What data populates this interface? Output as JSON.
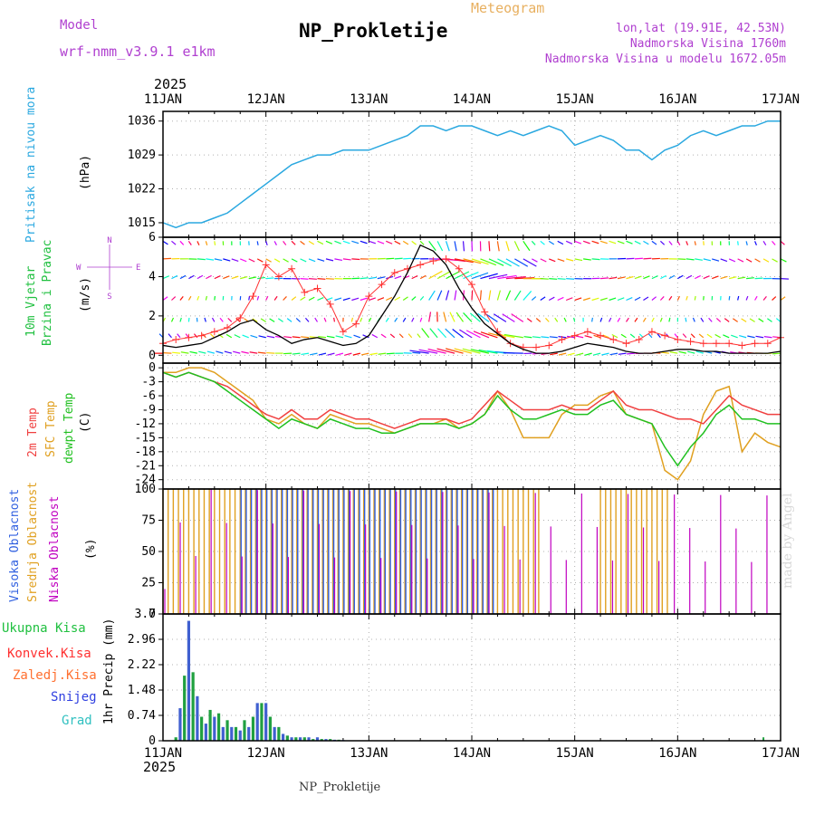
{
  "header": {
    "model_label": "Model",
    "model_name": "wrf-nmm_v3.9.1 e1km",
    "title": "NP_Prokletije",
    "subtitle": "Meteogram",
    "lonlat": "lon,lat (19.91E, 42.53N)",
    "elevation": "Nadmorska Visina 1760m",
    "model_elevation": "Nadmorska Visina u modelu 1672.05m",
    "watermark": "made by Angel",
    "footer_station": "NP_Prokletije"
  },
  "time_axis": {
    "year": "2025",
    "ticks": [
      "11JAN",
      "12JAN",
      "13JAN",
      "14JAN",
      "15JAN",
      "16JAN",
      "17JAN"
    ]
  },
  "colors": {
    "pressure": "#2aa8e0",
    "wind_speed": "#000000",
    "wind_gust": "#ff3030",
    "temp2m": "#f04040",
    "sfc_temp": "#e0a020",
    "dewpt": "#20c020",
    "cloud_high": "#3060e0",
    "cloud_mid": "#e0a020",
    "cloud_low": "#c000c0",
    "precip": "#20a040",
    "precip_bar2": "#4060d0",
    "model_text": "#b040d0",
    "subtitle_text": "#e8b060",
    "ukupna": "#20c040",
    "konvek": "#ff3030",
    "zaledj": "#ff7030",
    "snijeg": "#3040e0",
    "grad": "#30c0c0"
  },
  "panels": {
    "pressure": {
      "ylabel_color": "Pritisak na nivou mora",
      "ylabel_unit": "(hPa)"
    },
    "wind": {
      "ylabel_a": "10m Vjetar",
      "ylabel_b": "Brzina i Pravac",
      "ylabel_unit": "(m/s)",
      "compass_w": "W",
      "compass_e": "E",
      "compass_n": "N",
      "compass_s": "S"
    },
    "temp": {
      "ylabel_a": "2m Temp",
      "ylabel_b": "SFC Temp",
      "ylabel_c": "dewpt Temp",
      "ylabel_unit": "(C)"
    },
    "cloud": {
      "ylabel_a": "Visoka Oblacnost",
      "ylabel_b": "Srednja Oblacnost",
      "ylabel_c": "Niska Oblacnost",
      "ylabel_unit": "(%)"
    },
    "precip": {
      "legend": [
        "Ukupna Kisa",
        "Konvek.Kisa",
        "Zaledj.Kisa",
        "Snijeg",
        "Grad"
      ],
      "ylabel_unit": "1hr Precip (mm)"
    }
  },
  "chart_data": [
    {
      "type": "line",
      "name": "pressure",
      "ylim": [
        1012,
        1038
      ],
      "yticks": [
        1015,
        1022,
        1029,
        1036
      ],
      "x": [
        0,
        3,
        6,
        9,
        12,
        15,
        18,
        21,
        24,
        27,
        30,
        33,
        36,
        39,
        42,
        45,
        48,
        51,
        54,
        57,
        60,
        63,
        66,
        69,
        72,
        75,
        78,
        81,
        84,
        87,
        90,
        93,
        96,
        99,
        102,
        105,
        108,
        111,
        114,
        117,
        120,
        123,
        126,
        129,
        132,
        135,
        138,
        141,
        144
      ],
      "values": [
        1015,
        1014,
        1015,
        1015,
        1016,
        1017,
        1019,
        1021,
        1023,
        1025,
        1027,
        1028,
        1029,
        1029,
        1030,
        1030,
        1030,
        1031,
        1032,
        1033,
        1035,
        1035,
        1034,
        1035,
        1035,
        1034,
        1033,
        1034,
        1033,
        1034,
        1035,
        1034,
        1031,
        1032,
        1033,
        1032,
        1030,
        1030,
        1028,
        1030,
        1031,
        1033,
        1034,
        1033,
        1034,
        1035,
        1035,
        1036,
        1036
      ]
    },
    {
      "type": "line",
      "name": "wind",
      "ylim": [
        -0.4,
        6
      ],
      "yticks": [
        0,
        2,
        4,
        6
      ],
      "x": [
        0,
        3,
        6,
        9,
        12,
        15,
        18,
        21,
        24,
        27,
        30,
        33,
        36,
        39,
        42,
        45,
        48,
        51,
        54,
        57,
        60,
        63,
        66,
        69,
        72,
        75,
        78,
        81,
        84,
        87,
        90,
        93,
        96,
        99,
        102,
        105,
        108,
        111,
        114,
        117,
        120,
        123,
        126,
        129,
        132,
        135,
        138,
        141,
        144
      ],
      "speed": [
        0.5,
        0.4,
        0.5,
        0.6,
        0.9,
        1.2,
        1.6,
        1.8,
        1.3,
        1.0,
        0.6,
        0.8,
        0.9,
        0.7,
        0.5,
        0.6,
        1.0,
        2.0,
        3.0,
        4.2,
        5.6,
        5.3,
        4.6,
        3.4,
        2.4,
        1.6,
        1.1,
        0.6,
        0.3,
        0.1,
        0.1,
        0.2,
        0.4,
        0.6,
        0.5,
        0.4,
        0.2,
        0.1,
        0.1,
        0.2,
        0.3,
        0.3,
        0.2,
        0.2,
        0.1,
        0.1,
        0.1,
        0.1,
        0.2
      ],
      "gust": [
        0.6,
        0.8,
        0.9,
        1.0,
        1.2,
        1.4,
        1.9,
        3.0,
        4.6,
        4.0,
        4.4,
        3.2,
        3.4,
        2.6,
        1.2,
        1.6,
        3.0,
        3.6,
        4.2,
        4.4,
        4.6,
        4.8,
        4.9,
        4.4,
        3.6,
        2.2,
        1.2,
        0.6,
        0.4,
        0.4,
        0.5,
        0.8,
        1.0,
        1.2,
        1.0,
        0.8,
        0.6,
        0.8,
        1.2,
        1.0,
        0.8,
        0.7,
        0.6,
        0.6,
        0.6,
        0.5,
        0.6,
        0.6,
        0.9
      ]
    },
    {
      "type": "line",
      "name": "temperature",
      "ylim": [
        -26,
        1
      ],
      "yticks": [
        0,
        -3,
        -6,
        -9,
        -12,
        -15,
        -18,
        -21,
        -24
      ],
      "x": [
        0,
        3,
        6,
        9,
        12,
        15,
        18,
        21,
        24,
        27,
        30,
        33,
        36,
        39,
        42,
        45,
        48,
        51,
        54,
        57,
        60,
        63,
        66,
        69,
        72,
        75,
        78,
        81,
        84,
        87,
        90,
        93,
        96,
        99,
        102,
        105,
        108,
        111,
        114,
        117,
        120,
        123,
        126,
        129,
        132,
        135,
        138,
        141,
        144
      ],
      "temp2m": [
        -1,
        -2,
        -1,
        -2,
        -3,
        -4,
        -6,
        -8,
        -10,
        -11,
        -9,
        -11,
        -11,
        -9,
        -10,
        -11,
        -11,
        -12,
        -13,
        -12,
        -11,
        -11,
        -11,
        -12,
        -11,
        -8,
        -5,
        -7,
        -9,
        -9,
        -9,
        -8,
        -9,
        -9,
        -7,
        -5,
        -8,
        -9,
        -9,
        -10,
        -11,
        -11,
        -12,
        -9,
        -6,
        -8,
        -9,
        -10,
        -10
      ],
      "sfc": [
        -1,
        -1,
        0,
        0,
        -1,
        -3,
        -5,
        -7,
        -11,
        -12,
        -10,
        -12,
        -13,
        -10,
        -11,
        -12,
        -12,
        -13,
        -14,
        -13,
        -12,
        -12,
        -11,
        -13,
        -12,
        -10,
        -5,
        -9,
        -15,
        -15,
        -15,
        -10,
        -8,
        -8,
        -6,
        -5,
        -10,
        -11,
        -12,
        -22,
        -24,
        -20,
        -10,
        -5,
        -4,
        -18,
        -14,
        -16,
        -17
      ],
      "dewpt": [
        -1,
        -2,
        -1,
        -2,
        -3,
        -5,
        -7,
        -9,
        -11,
        -13,
        -11,
        -12,
        -13,
        -11,
        -12,
        -13,
        -13,
        -14,
        -14,
        -13,
        -12,
        -12,
        -12,
        -13,
        -12,
        -10,
        -6,
        -9,
        -11,
        -11,
        -10,
        -9,
        -10,
        -10,
        -8,
        -7,
        -10,
        -11,
        -12,
        -17,
        -21,
        -17,
        -14,
        -10,
        -8,
        -11,
        -11,
        -12,
        -12
      ]
    },
    {
      "type": "bar",
      "name": "cloud",
      "ylim": [
        0,
        100
      ],
      "yticks": [
        0,
        25,
        50,
        75,
        100
      ]
    },
    {
      "type": "bar",
      "name": "precip",
      "ylim": [
        0,
        3.7
      ],
      "yticks": [
        0,
        0.74,
        1.48,
        2.22,
        2.96,
        3.7
      ],
      "x": [
        1,
        2,
        3,
        4,
        5,
        6,
        7,
        8,
        9,
        10,
        11,
        12,
        13,
        14,
        15,
        16,
        17,
        18,
        19,
        20,
        21,
        22,
        23,
        24,
        25,
        26,
        27,
        28,
        29,
        30,
        31,
        32,
        33,
        34,
        35,
        36,
        37,
        38,
        39,
        40
      ],
      "values": [
        0.1,
        0.95,
        1.9,
        3.5,
        2.0,
        1.3,
        0.7,
        0.5,
        0.9,
        0.7,
        0.8,
        0.4,
        0.6,
        0.4,
        0.4,
        0.3,
        0.6,
        0.4,
        0.7,
        1.1,
        1.1,
        1.1,
        0.7,
        0.4,
        0.4,
        0.2,
        0.15,
        0.1,
        0.1,
        0.1,
        0.1,
        0.1,
        0.05,
        0.1,
        0.05,
        0.05,
        0.05,
        0.03,
        0.03,
        0.02
      ]
    }
  ]
}
